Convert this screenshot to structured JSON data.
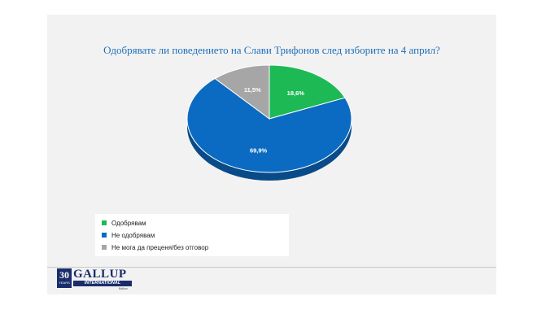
{
  "chart_data": {
    "type": "pie",
    "title": "Одобрявате ли поведението на Слави Трифонов след изборите на 4 април?",
    "categories": [
      "Одобрявам",
      "Не одобрявам",
      "Не мога да преценя/без отговор"
    ],
    "values": [
      18.6,
      69.9,
      11.5
    ],
    "data_labels": [
      "18,6%",
      "69,9%",
      "11,5%"
    ],
    "colors": [
      "#1db954",
      "#0b6bc2",
      "#a6a6a6"
    ],
    "legend_position": "bottom-left"
  },
  "logo": {
    "number": "30",
    "years": "YEARS",
    "name": "GALLUP",
    "international": "INTERNATIONAL",
    "sub": "Balkan"
  }
}
